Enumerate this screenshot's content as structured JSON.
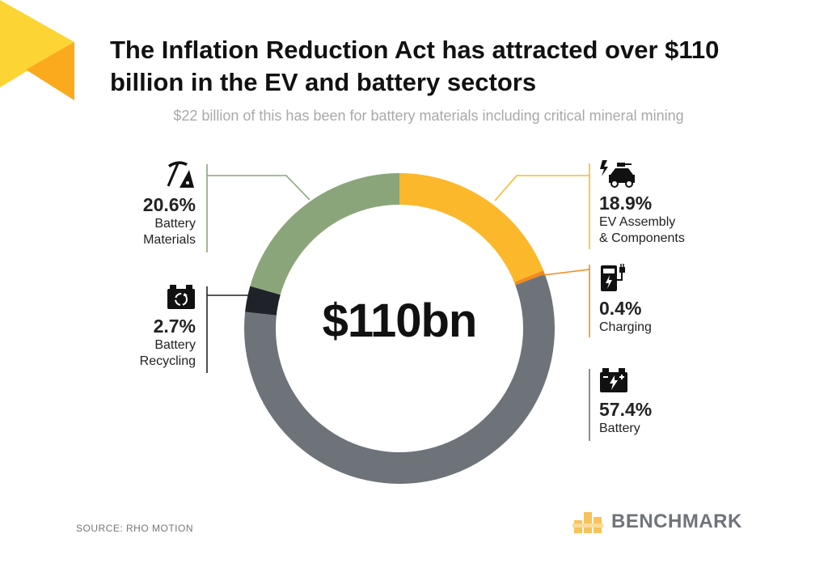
{
  "header": {
    "title": "The Inflation Reduction Act has attracted over $110 billion in the EV and battery sectors",
    "subtitle": "$22 billion of this has been for battery materials including critical mineral mining"
  },
  "chart_data": {
    "type": "pie",
    "style": "donut",
    "center_label": "$110bn",
    "slices": [
      {
        "name": "EV Assembly & Components",
        "value": 18.9,
        "value_label": "18.9%",
        "color": "#fbb82b",
        "icon": "electric-car-icon"
      },
      {
        "name": "Charging",
        "value": 0.4,
        "value_label": "0.4%",
        "color": "#f28a1d",
        "icon": "charging-station-icon"
      },
      {
        "name": "Battery",
        "value": 57.4,
        "value_label": "57.4%",
        "color": "#6e737a",
        "icon": "battery-icon"
      },
      {
        "name": "Battery Recycling",
        "value": 2.7,
        "value_label": "2.7%",
        "color": "#1f2329",
        "icon": "recycling-battery-icon"
      },
      {
        "name": "Battery Materials",
        "value": 20.6,
        "value_label": "20.6%",
        "color": "#8aa57a",
        "icon": "mining-pickaxe-icon"
      }
    ],
    "labels": {
      "ev": {
        "pct": "18.9%",
        "line1": "EV Assembly",
        "line2": "& Components"
      },
      "charging": {
        "pct": "0.4%",
        "line1": "Charging"
      },
      "battery": {
        "pct": "57.4%",
        "line1": "Battery"
      },
      "recycling": {
        "pct": "2.7%",
        "line1": "Battery",
        "line2": "Recycling"
      },
      "materials": {
        "pct": "20.6%",
        "line1": "Battery",
        "line2": "Materials"
      }
    }
  },
  "footer": {
    "source": "SOURCE: RHO MOTION",
    "brand": "BENCHMARK"
  },
  "colors": {
    "deco_yellow": "#fcd535",
    "deco_orange": "#fba91d",
    "brand_icon": "#f6c35a",
    "brand_text": "#6f747a"
  }
}
